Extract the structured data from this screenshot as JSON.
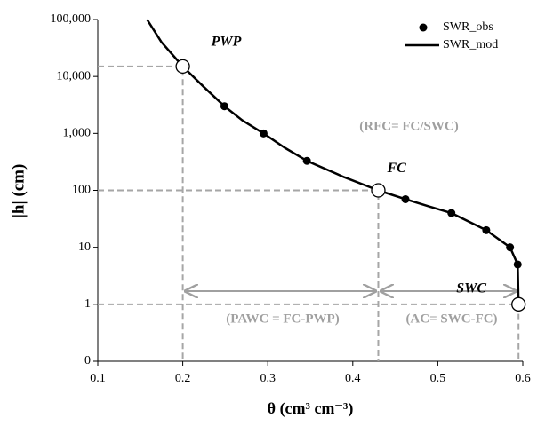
{
  "chart_data": {
    "type": "line",
    "y_label": "|h| (cm)",
    "x_label": "θ (cm³ cm⁻³)",
    "xlim": [
      0.1,
      0.6
    ],
    "xticks": [
      0.1,
      0.2,
      0.3,
      0.4,
      0.5,
      0.6
    ],
    "ylim": [
      0.1,
      100000
    ],
    "log_y": true,
    "yticks": [
      {
        "value": 0.1,
        "label": "0"
      },
      1,
      10,
      100,
      {
        "value": 1000,
        "label": "1,000"
      },
      {
        "value": 10000,
        "label": "10,000"
      },
      {
        "value": 100000,
        "label": "100,000"
      }
    ],
    "legend": "upper right",
    "series": [
      {
        "name": "SWR_obs",
        "color": "#000000",
        "style": "markers",
        "x": [
          0.249,
          0.295,
          0.346,
          0.462,
          0.516,
          0.557,
          0.585,
          0.594
        ],
        "values": [
          3000,
          1000,
          330,
          70,
          40,
          20,
          10,
          5
        ]
      },
      {
        "name": "SWR_mod",
        "color": "#000000",
        "style": "line",
        "x": [
          0.158,
          0.175,
          0.2,
          0.225,
          0.249,
          0.27,
          0.295,
          0.32,
          0.346,
          0.39,
          0.43,
          0.462,
          0.49,
          0.516,
          0.557,
          0.585,
          0.594,
          0.595
        ],
        "values": [
          100000,
          40000,
          15000,
          6500,
          3000,
          1700,
          1000,
          560,
          330,
          170,
          100,
          70,
          52,
          40,
          20,
          10,
          5,
          1
        ]
      }
    ],
    "points": [
      {
        "label": "PWP",
        "x": 0.2,
        "y": 15000
      },
      {
        "label": "FC",
        "x": 0.43,
        "y": 100
      },
      {
        "label": "SWC",
        "x": 0.595,
        "y": 1
      }
    ],
    "annotations": [
      "(RFC= FC/SWC)",
      "(PAWC = FC-PWP)",
      "(AC= SWC-FC)"
    ]
  }
}
